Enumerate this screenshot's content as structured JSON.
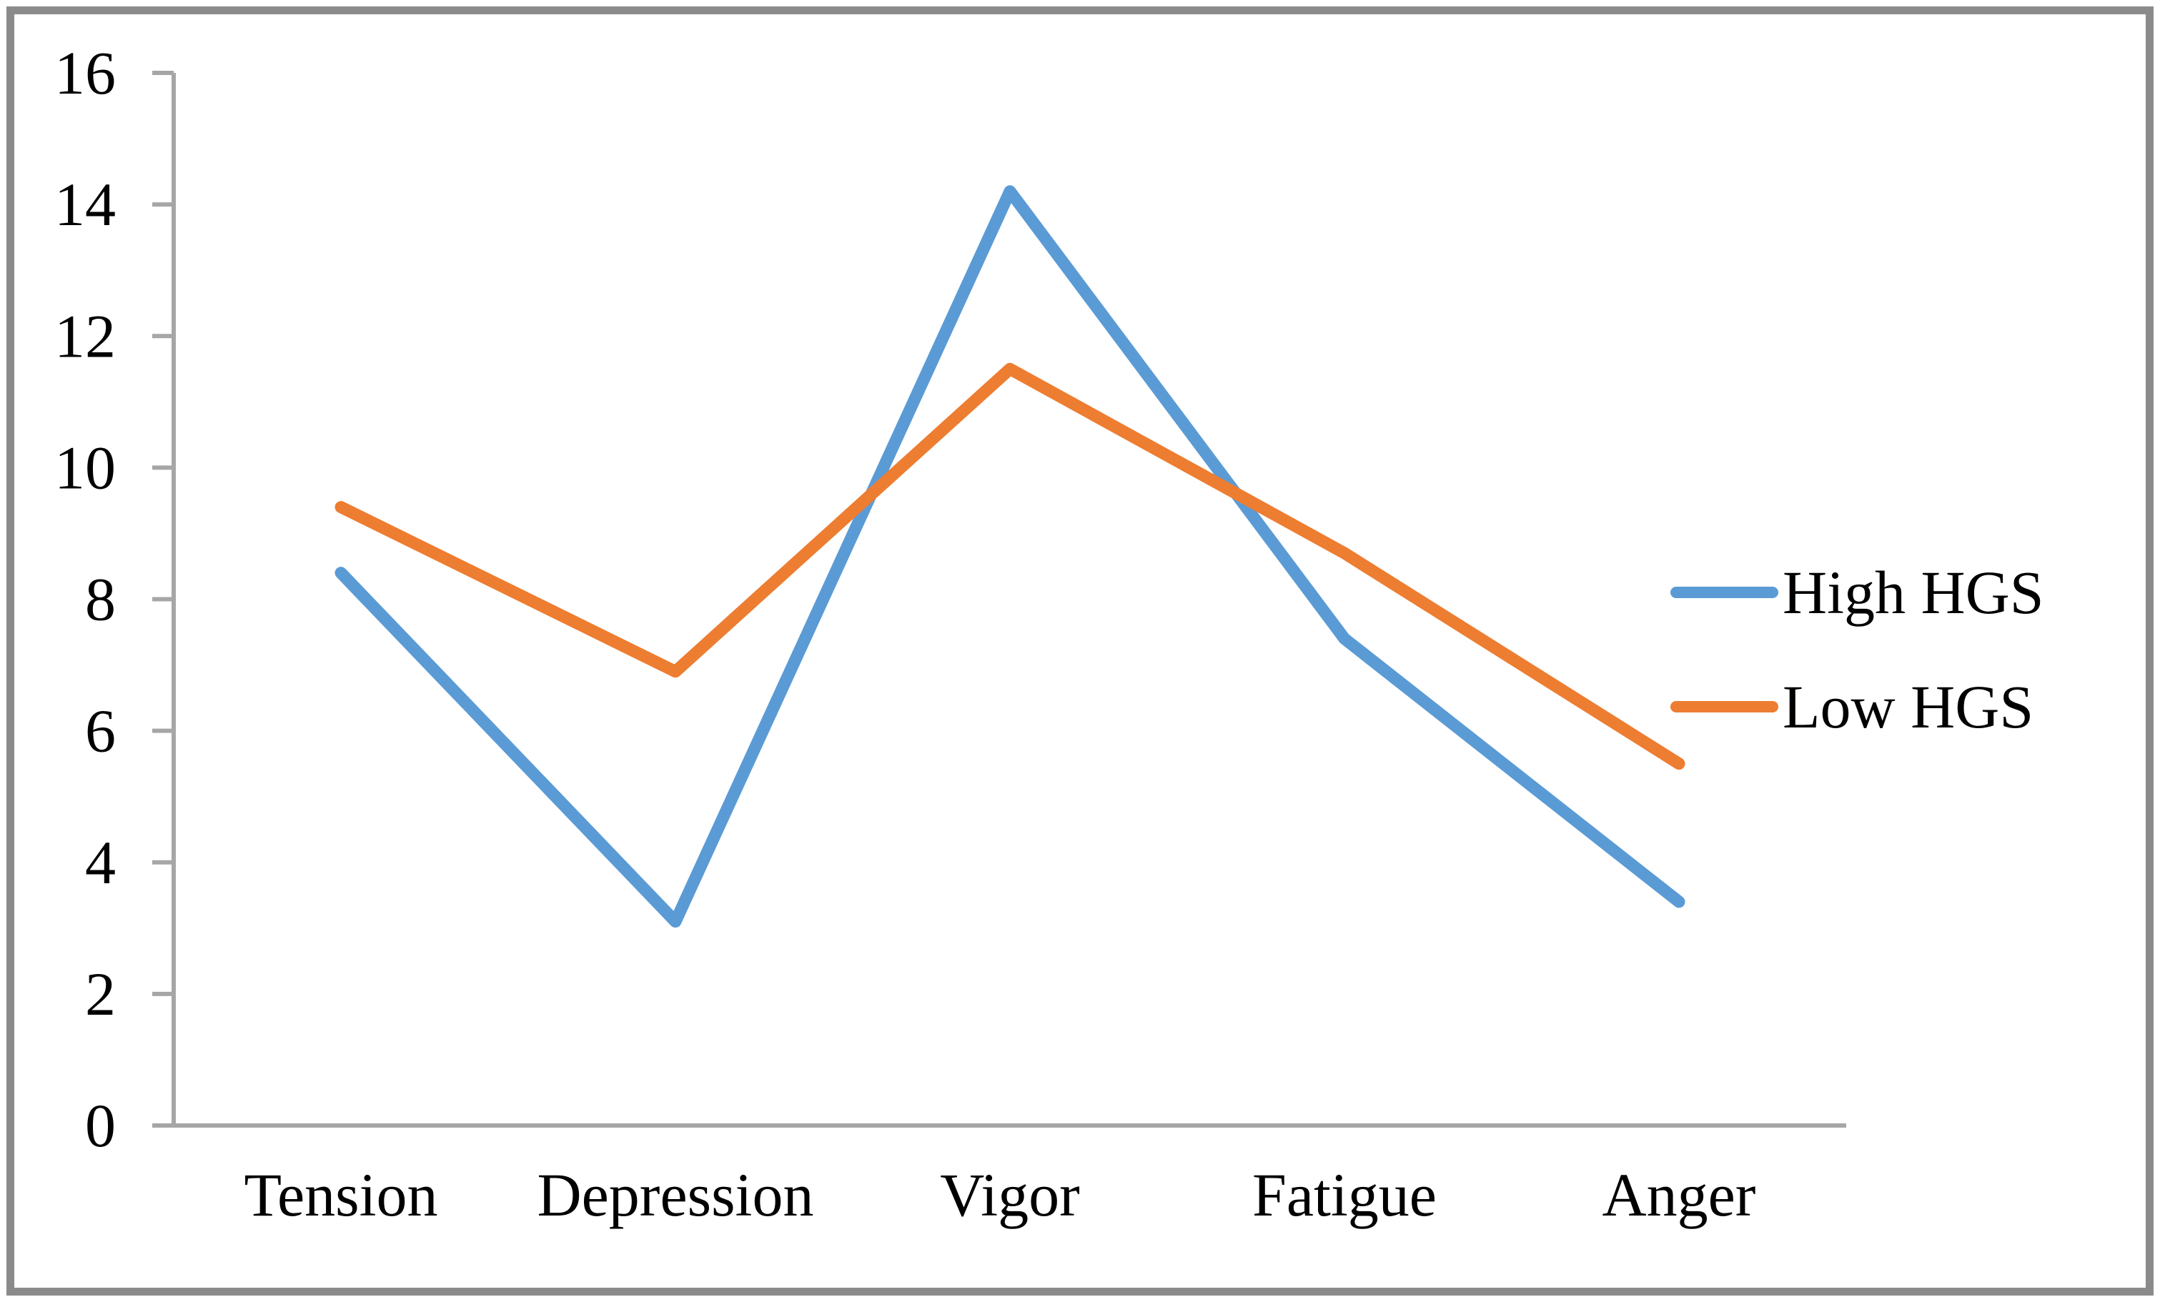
{
  "chart_data": {
    "type": "line",
    "categories": [
      "Tension",
      "Depression",
      "Vigor",
      "Fatigue",
      "Anger"
    ],
    "series": [
      {
        "name": "High HGS",
        "color": "#5B9BD5",
        "values": [
          8.4,
          3.1,
          14.2,
          7.4,
          3.4
        ]
      },
      {
        "name": "Low HGS",
        "color": "#ED7D31",
        "values": [
          9.4,
          6.9,
          11.5,
          8.7,
          5.5
        ]
      }
    ],
    "ylim": [
      0,
      16
    ],
    "ytick_step": 2,
    "ytick_labels": [
      "0",
      "2",
      "4",
      "6",
      "8",
      "10",
      "12",
      "14",
      "16"
    ],
    "xlabel": "",
    "ylabel": "",
    "grid": false,
    "legend_position": "right",
    "colors": {
      "axis": "#A6A6A6",
      "frame": "#8B8B8B",
      "text": "#000000",
      "background": "#FFFFFF"
    }
  }
}
